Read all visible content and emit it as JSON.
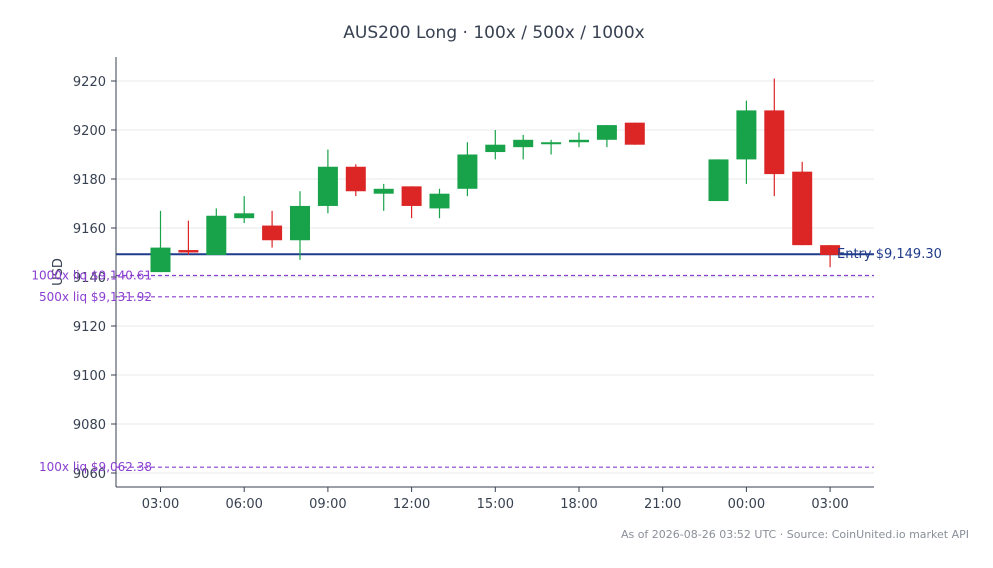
{
  "chart_data": {
    "type": "candlestick",
    "title": "AUS200 Long · 100x / 500x / 1000x",
    "ylabel": "USD",
    "xlabel": "",
    "ylim": [
      9055,
      9230
    ],
    "yticks": [
      9060,
      9080,
      9100,
      9120,
      9140,
      9160,
      9180,
      9200,
      9220
    ],
    "x_range": [
      1.5,
      26.5
    ],
    "xticks": [
      {
        "x": 3,
        "label": "03:00"
      },
      {
        "x": 6,
        "label": "06:00"
      },
      {
        "x": 9,
        "label": "09:00"
      },
      {
        "x": 12,
        "label": "12:00"
      },
      {
        "x": 15,
        "label": "15:00"
      },
      {
        "x": 18,
        "label": "18:00"
      },
      {
        "x": 21,
        "label": "21:00"
      },
      {
        "x": 24,
        "label": "00:00"
      },
      {
        "x": 27,
        "label": "03:00"
      }
    ],
    "candles": [
      {
        "x": 3,
        "open": 9142,
        "high": 9167,
        "low": 9142,
        "close": 9152
      },
      {
        "x": 4,
        "open": 9151,
        "high": 9163,
        "low": 9149,
        "close": 9150
      },
      {
        "x": 5,
        "open": 9149,
        "high": 9168,
        "low": 9149,
        "close": 9165
      },
      {
        "x": 6,
        "open": 9164,
        "high": 9173,
        "low": 9162,
        "close": 9166
      },
      {
        "x": 7,
        "open": 9161,
        "high": 9167,
        "low": 9152,
        "close": 9155
      },
      {
        "x": 8,
        "open": 9155,
        "high": 9175,
        "low": 9147,
        "close": 9169
      },
      {
        "x": 9,
        "open": 9169,
        "high": 9192,
        "low": 9166,
        "close": 9185
      },
      {
        "x": 10,
        "open": 9185,
        "high": 9186,
        "low": 9173,
        "close": 9175
      },
      {
        "x": 11,
        "open": 9174,
        "high": 9178,
        "low": 9167,
        "close": 9176
      },
      {
        "x": 12,
        "open": 9177,
        "high": 9177,
        "low": 9164,
        "close": 9169
      },
      {
        "x": 13,
        "open": 9168,
        "high": 9176,
        "low": 9164,
        "close": 9174
      },
      {
        "x": 14,
        "open": 9176,
        "high": 9195,
        "low": 9173,
        "close": 9190
      },
      {
        "x": 15,
        "open": 9191,
        "high": 9200,
        "low": 9188,
        "close": 9194
      },
      {
        "x": 16,
        "open": 9193,
        "high": 9198,
        "low": 9188,
        "close": 9196
      },
      {
        "x": 17,
        "open": 9195,
        "high": 9196,
        "low": 9190,
        "close": 9195
      },
      {
        "x": 18,
        "open": 9195,
        "high": 9199,
        "low": 9193,
        "close": 9196
      },
      {
        "x": 19,
        "open": 9196,
        "high": 9202,
        "low": 9193,
        "close": 9202
      },
      {
        "x": 20,
        "open": 9203,
        "high": 9203,
        "low": 9194,
        "close": 9194
      },
      {
        "x": 23,
        "open": 9171,
        "high": 9188,
        "low": 9171,
        "close": 9188
      },
      {
        "x": 24,
        "open": 9188,
        "high": 9212,
        "low": 9178,
        "close": 9208
      },
      {
        "x": 25,
        "open": 9208,
        "high": 9221,
        "low": 9173,
        "close": 9182
      },
      {
        "x": 26,
        "open": 9183,
        "high": 9187,
        "low": 9153,
        "close": 9153
      },
      {
        "x": 27,
        "open": 9153,
        "high": 9153,
        "low": 9144,
        "close": 9149
      }
    ],
    "reference_lines": [
      {
        "label": "Entry $9,149.30",
        "value": 9149.3,
        "style": "solid",
        "color": "#1f3b8c"
      },
      {
        "label": "1000x liq $9,140.61",
        "value": 9140.61,
        "style": "dashed",
        "color": "#8a3fd1"
      },
      {
        "label": "500x liq $9,131.92",
        "value": 9131.92,
        "style": "dashed",
        "color": "#8a3fd1"
      },
      {
        "label": "100x liq $9,062.38",
        "value": 9062.38,
        "style": "dashed",
        "color": "#8a3fd1"
      }
    ],
    "colors": {
      "up": "#18a34a",
      "down": "#dc2626",
      "grid": "#e8e8e8",
      "axis": "#374151"
    },
    "grid": true,
    "footnote": "As of 2026-08-26 03:52 UTC · Source: CoinUnited.io market API"
  }
}
